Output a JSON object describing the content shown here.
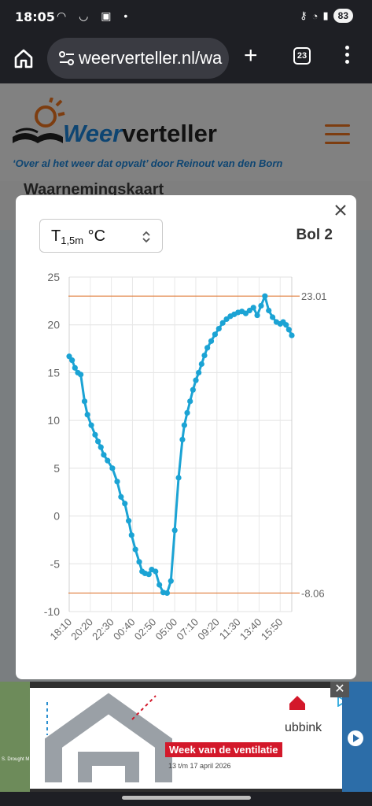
{
  "status_bar": {
    "time": "18:05",
    "battery": "83"
  },
  "browser": {
    "url": "weerverteller.nl/wa",
    "tab_count": "23",
    "icons": [
      "home-icon",
      "site-settings-icon",
      "new-tab-icon",
      "tabs-icon",
      "more-menu-icon"
    ]
  },
  "site": {
    "logo_part1": "Weer",
    "logo_part2": "verteller",
    "tagline": "‘Over al het weer dat opvalt’ door Reinout van den Born",
    "page_title": "Waarnemingskaart",
    "map_link_fragment": "art"
  },
  "modal": {
    "select_main": "T",
    "select_sub": "1,5m",
    "select_unit": " °C",
    "station": "Bol 2"
  },
  "chart_data": {
    "type": "line",
    "title": "",
    "xlabel": "",
    "ylabel": "",
    "ylim": [
      -10,
      25
    ],
    "yticks": [
      "25",
      "20",
      "15",
      "10",
      "5",
      "0",
      "-5",
      "-10"
    ],
    "xticks": [
      "18:10",
      "20:20",
      "22:30",
      "00:40",
      "02:50",
      "05:00",
      "07:10",
      "09:20",
      "11:30",
      "13:40",
      "15:50"
    ],
    "grid": true,
    "colors": {
      "series": "#1ba3d4",
      "reference": "#e07b39"
    },
    "reference_lines": [
      {
        "value": 23.01,
        "label": "23.01"
      },
      {
        "value": -8.06,
        "label": "-8.06"
      }
    ],
    "series": [
      {
        "x_hours": [
          0,
          0.3,
          0.6,
          0.9,
          1.2,
          1.6,
          1.9,
          2.3,
          2.7,
          3.0,
          3.3,
          3.6,
          4.0,
          4.5,
          5.0,
          5.4,
          5.8,
          6.2,
          6.5,
          6.9,
          7.3,
          7.6,
          7.9,
          8.3,
          8.6,
          9.0,
          9.4,
          9.8,
          10.2,
          10.6,
          11.0,
          11.4,
          11.8,
          12.0,
          12.3,
          12.6,
          12.9,
          13.2,
          13.5,
          13.8,
          14.1,
          14.4,
          14.8,
          15.2,
          15.6,
          16.0,
          16.4,
          16.8,
          17.2,
          17.6,
          18.0,
          18.4,
          18.8,
          19.2,
          19.6,
          20.0,
          20.4,
          20.8,
          21.2,
          21.6,
          22.0,
          22.3,
          22.6,
          22.9,
          23.2
        ],
        "values": [
          16.7,
          16.3,
          15.5,
          15.0,
          14.8,
          12.0,
          10.6,
          9.5,
          8.5,
          7.8,
          7.2,
          6.4,
          5.8,
          5.0,
          3.6,
          2.0,
          1.3,
          -0.5,
          -2.0,
          -3.5,
          -4.8,
          -5.8,
          -6.0,
          -6.1,
          -5.6,
          -5.8,
          -7.2,
          -8.0,
          -8.06,
          -6.8,
          -1.5,
          4.0,
          8.0,
          9.5,
          10.8,
          12.0,
          13.2,
          14.2,
          15.0,
          15.9,
          16.8,
          17.6,
          18.3,
          19.0,
          19.6,
          20.2,
          20.6,
          20.9,
          21.1,
          21.3,
          21.4,
          21.2,
          21.5,
          21.8,
          21.0,
          22.0,
          23.01,
          21.5,
          20.8,
          20.3,
          20.1,
          20.3,
          20.0,
          19.5,
          18.9
        ]
      }
    ],
    "x_range_hours": [
      0,
      23.2
    ]
  },
  "ad": {
    "brand": "ubbink",
    "headline": "Week van de ventilatie",
    "subline": "13 t/m 17 april 2026",
    "side_text": "S. Drought M",
    "close": "✕"
  }
}
